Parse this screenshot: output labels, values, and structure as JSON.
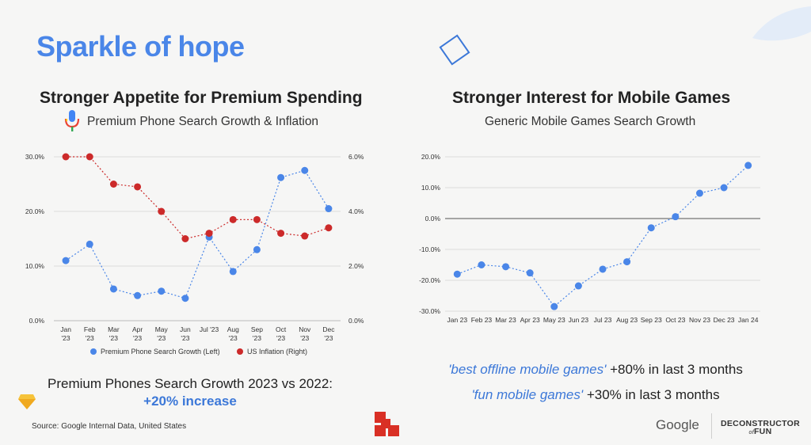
{
  "slide": {
    "title": "Sparkle of hope",
    "source": "Source: Google Internal Data, United States",
    "summary_line1": "Premium Phones Search Growth 2023 vs 2022:",
    "summary_line2": "+20% increase",
    "keyword1_query": "'best offline mobile games'",
    "keyword1_text": " +80% in last 3 months",
    "keyword2_query": "'fun mobile games'",
    "keyword2_text": " +30% in last 3 months",
    "brand_google": "Google",
    "brand_dof_line1": "DECONSTRUCTOR",
    "brand_dof_line2": "of",
    "brand_dof_line3": "FUN",
    "icons": [
      "microphone-icon",
      "diamond-outline-icon",
      "sketch-diamond-icon",
      "red-blocks-logo-icon"
    ],
    "colors": {
      "title_blue": "#4a86e8",
      "series_blue": "#4a86e8",
      "series_red": "#cc2a2a"
    }
  },
  "chart_data": [
    {
      "type": "line",
      "title": "Stronger Appetite for Premium Spending",
      "subtitle": "Premium Phone Search Growth & Inflation",
      "categories": [
        "Jan '23",
        "Feb '23",
        "Mar '23",
        "Apr '23",
        "May '23",
        "Jun '23",
        "Jul '23",
        "Aug '23",
        "Sep '23",
        "Oct '23",
        "Nov '23",
        "Dec '23"
      ],
      "category_lines": [
        [
          "Jan",
          "'23"
        ],
        [
          "Feb",
          "'23"
        ],
        [
          "Mar",
          "'23"
        ],
        [
          "Apr",
          "'23"
        ],
        [
          "May",
          "'23"
        ],
        [
          "Jun",
          "'23"
        ],
        [
          "Jul '23",
          ""
        ],
        [
          "Aug",
          "'23"
        ],
        [
          "Sep",
          "'23"
        ],
        [
          "Oct",
          "'23"
        ],
        [
          "Nov",
          "'23"
        ],
        [
          "Dec",
          "'23"
        ]
      ],
      "series": [
        {
          "name": "Premium Phone Search Growth (Left)",
          "axis": "left",
          "color": "#4a86e8",
          "values": [
            11.0,
            14.0,
            5.8,
            4.6,
            5.4,
            4.1,
            15.3,
            9.0,
            13.0,
            26.2,
            27.5,
            20.5
          ]
        },
        {
          "name": "US Inflation (Right)",
          "axis": "right",
          "color": "#cc2a2a",
          "values": [
            6.0,
            6.0,
            5.0,
            4.9,
            4.0,
            3.0,
            3.2,
            3.7,
            3.7,
            3.2,
            3.1,
            3.4
          ]
        }
      ],
      "ylim_left": [
        0,
        30
      ],
      "yticks_left": [
        "0.0%",
        "10.0%",
        "20.0%",
        "30.0%"
      ],
      "ylim_right": [
        0,
        6
      ],
      "yticks_right": [
        "0.0%",
        "2.0%",
        "4.0%",
        "6.0%"
      ],
      "grid": true,
      "legend_position": "bottom"
    },
    {
      "type": "line",
      "title": "Stronger Interest for Mobile Games",
      "subtitle": "Generic Mobile Games Search Growth",
      "categories": [
        "Jan 23",
        "Feb 23",
        "Mar 23",
        "Apr 23",
        "May 23",
        "Jun 23",
        "Jul 23",
        "Aug 23",
        "Sep 23",
        "Oct 23",
        "Nov 23",
        "Dec 23",
        "Jan 24"
      ],
      "series": [
        {
          "color": "#4a86e8",
          "values": [
            -18.0,
            -15.0,
            -15.6,
            -17.6,
            -28.5,
            -21.8,
            -16.4,
            -14.0,
            -3.0,
            0.6,
            8.2,
            10.0,
            17.2
          ]
        }
      ],
      "ylim": [
        -30,
        20
      ],
      "yticks": [
        "-30.0%",
        "-20.0%",
        "-10.0%",
        "0.0%",
        "10.0%",
        "20.0%"
      ],
      "grid": true
    }
  ]
}
